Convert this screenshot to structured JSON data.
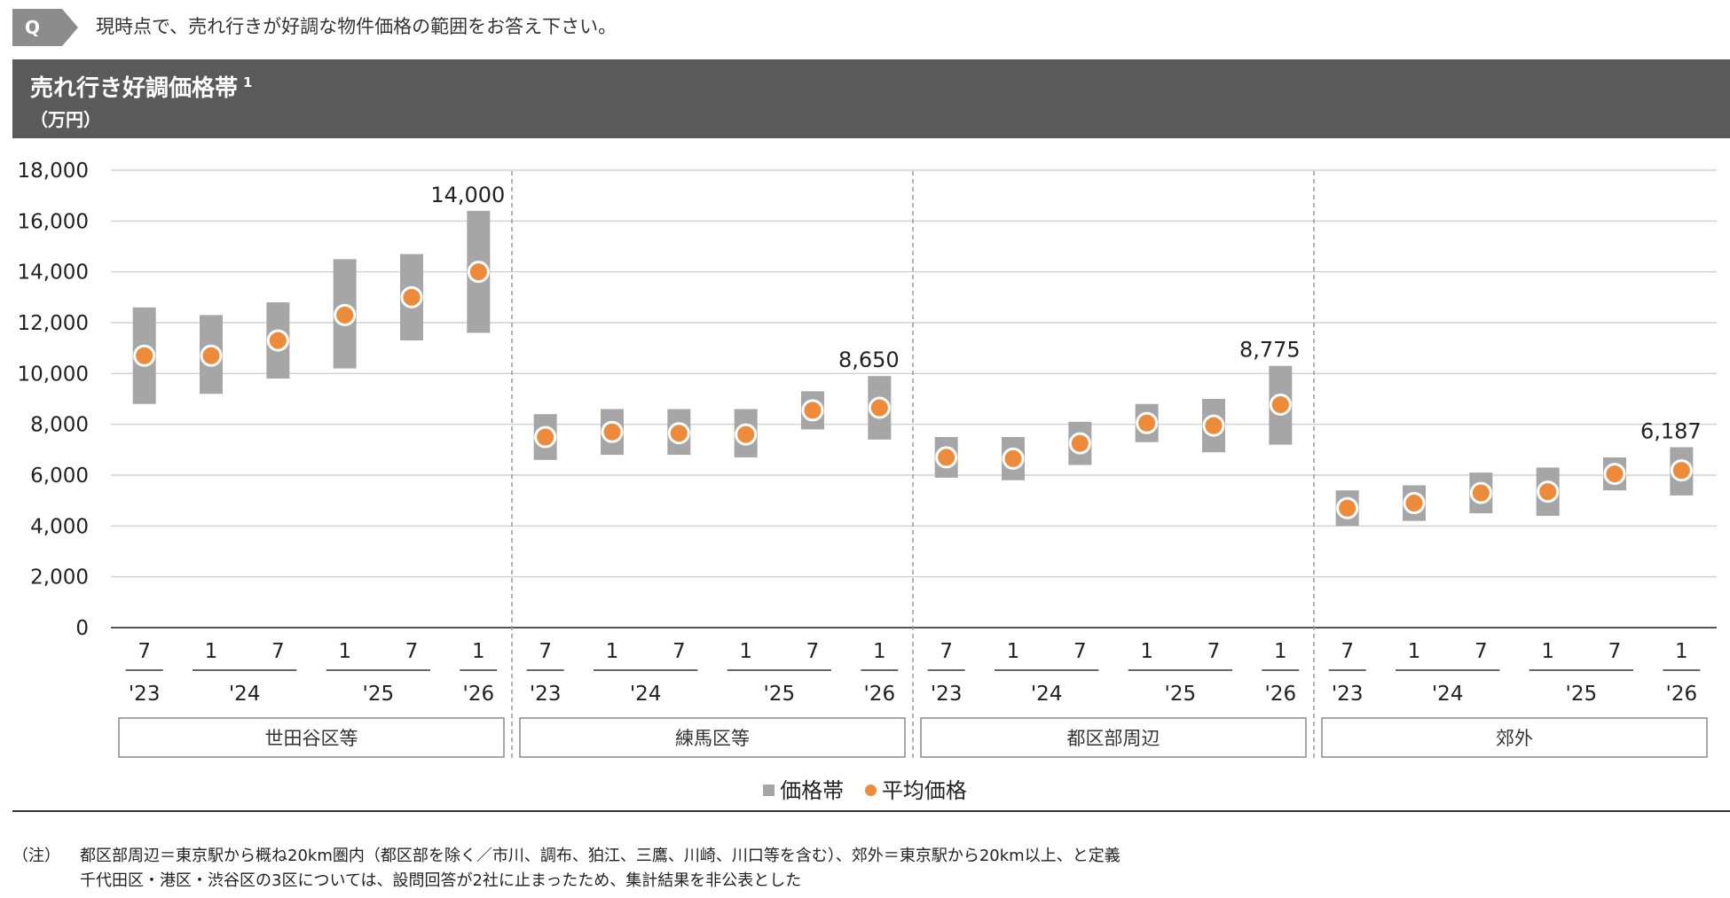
{
  "question": {
    "badge": "Q",
    "text": "現時点で、売れ行きが好調な物件価格の範囲をお答え下さい。"
  },
  "header": {
    "title": "売れ行き好調価格帯",
    "footnote_mark": "1",
    "unit": "（万円）"
  },
  "colors": {
    "band": "#a6a6a6",
    "average": "#ed8b3a",
    "header_bg": "#5a5a5a"
  },
  "chart_data": {
    "type": "range-bar-with-dot",
    "ylim": [
      0,
      18000
    ],
    "yticks": [
      "0",
      "2,000",
      "4,000",
      "6,000",
      "8,000",
      "10,000",
      "12,000",
      "14,000",
      "16,000",
      "18,000"
    ],
    "month_labels": [
      "7",
      "1",
      "7",
      "1",
      "7",
      "1"
    ],
    "year_labels": [
      "'23",
      "'24",
      "'25",
      "'26"
    ],
    "groups": [
      {
        "name": "世田谷区等",
        "low": [
          8800,
          9200,
          9800,
          10200,
          11300,
          11600
        ],
        "high": [
          12600,
          12300,
          12800,
          14500,
          14700,
          16400
        ],
        "avg": [
          10700,
          10700,
          11300,
          12300,
          13000,
          14000
        ],
        "last_label": "14,000"
      },
      {
        "name": "練馬区等",
        "low": [
          6600,
          6800,
          6800,
          6700,
          7800,
          7400
        ],
        "high": [
          8400,
          8600,
          8600,
          8600,
          9300,
          9900
        ],
        "avg": [
          7500,
          7700,
          7650,
          7600,
          8550,
          8650
        ],
        "last_label": "8,650"
      },
      {
        "name": "都区部周辺",
        "low": [
          5900,
          5800,
          6400,
          7300,
          6900,
          7200
        ],
        "high": [
          7500,
          7500,
          8100,
          8800,
          9000,
          10300
        ],
        "avg": [
          6700,
          6650,
          7250,
          8050,
          7950,
          8775
        ],
        "last_label": "8,775"
      },
      {
        "name": "郊外",
        "low": [
          4000,
          4200,
          4500,
          4400,
          5400,
          5200
        ],
        "high": [
          5400,
          5600,
          6100,
          6300,
          6700,
          7100
        ],
        "avg": [
          4700,
          4900,
          5300,
          5350,
          6050,
          6187
        ],
        "last_label": "6,187"
      }
    ],
    "legend": {
      "band": "価格帯",
      "average": "平均価格"
    }
  },
  "notes": {
    "label": "（注）",
    "line1": "都区部周辺＝東京駅から概ね20km圏内（都区部を除く／市川、調布、狛江、三鷹、川崎、川口等を含む）、郊外＝東京駅から20km以上、と定義",
    "line2": "千代田区・港区・渋谷区の3区については、設問回答が2社に止まったため、集計結果を非公表とした"
  }
}
